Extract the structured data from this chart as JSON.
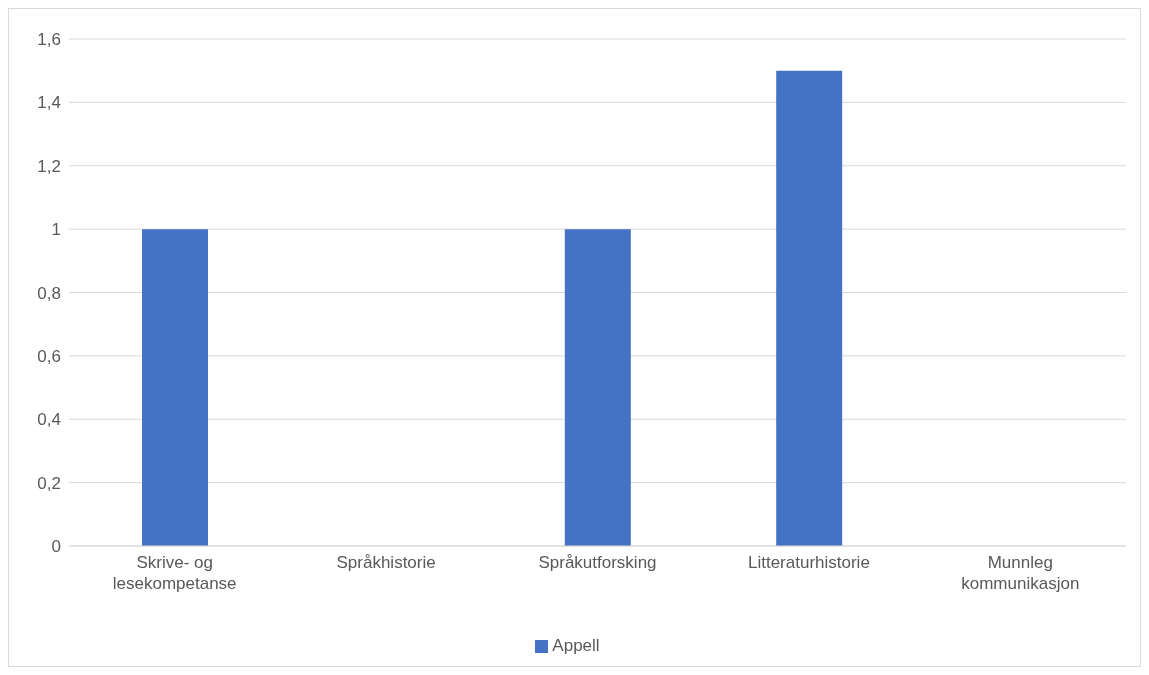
{
  "chart_data": {
    "type": "bar",
    "categories": [
      "Skrive- og lesekompetanse",
      "Språkhistorie",
      "Språkutforsking",
      "Litteraturhistorie",
      "Munnleg kommunikasjon"
    ],
    "series": [
      {
        "name": "Appell",
        "color": "#4472c4",
        "values": [
          1,
          0,
          1,
          1.5,
          0
        ]
      }
    ],
    "ylim": [
      0,
      1.6
    ],
    "yticks": [
      0,
      {
        "value": 0.2,
        "label": "0,2"
      },
      {
        "value": 0.4,
        "label": "0,4"
      },
      {
        "value": 0.6,
        "label": "0,6"
      },
      {
        "value": 0.8,
        "label": "0,8"
      },
      1,
      {
        "value": 1.2,
        "label": "1,2"
      },
      {
        "value": 1.4,
        "label": "1,4"
      },
      {
        "value": 1.6,
        "label": "1,6"
      }
    ],
    "grid": "y",
    "legend": "bottom"
  }
}
